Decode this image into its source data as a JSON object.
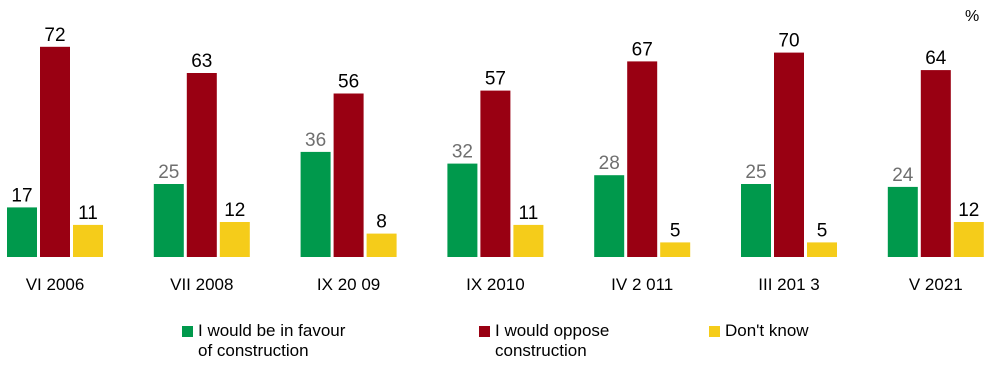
{
  "unit": "%",
  "colors": {
    "favour": "#00994c",
    "oppose": "#990012",
    "dont_know": "#f5cc1a",
    "label_dark": "#000000",
    "label_grey": "#6f6f6f"
  },
  "chart_data": {
    "type": "bar",
    "categories": [
      "VI 2006",
      "VII 2008",
      "IX 20 09",
      "IX 2010",
      "IV 2 011",
      "III 201 3",
      "V 2021"
    ],
    "series": [
      {
        "name": "I would be in favour\nof construction",
        "values": [
          17,
          25,
          36,
          32,
          28,
          25,
          24
        ]
      },
      {
        "name": "I would oppose\nconstruction",
        "values": [
          72,
          63,
          56,
          57,
          67,
          70,
          64
        ]
      },
      {
        "name": "Don't know",
        "values": [
          11,
          12,
          8,
          11,
          5,
          5,
          12
        ]
      }
    ],
    "ylim": [
      0,
      100
    ],
    "grid": false,
    "legend": "bottom"
  }
}
